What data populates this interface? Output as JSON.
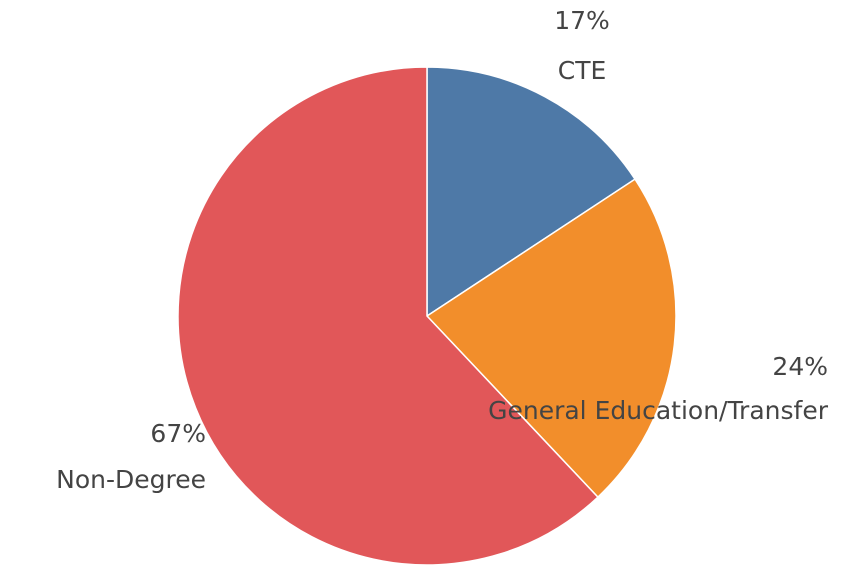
{
  "chart_data": {
    "type": "pie",
    "categories": [
      "CTE",
      "General Education/Transfer",
      "Non-Degree"
    ],
    "values": [
      17,
      24,
      67
    ],
    "value_labels": [
      "17%",
      "24%",
      "67%"
    ],
    "colors": [
      "#4e79a7",
      "#f28e2b",
      "#e15759"
    ]
  }
}
